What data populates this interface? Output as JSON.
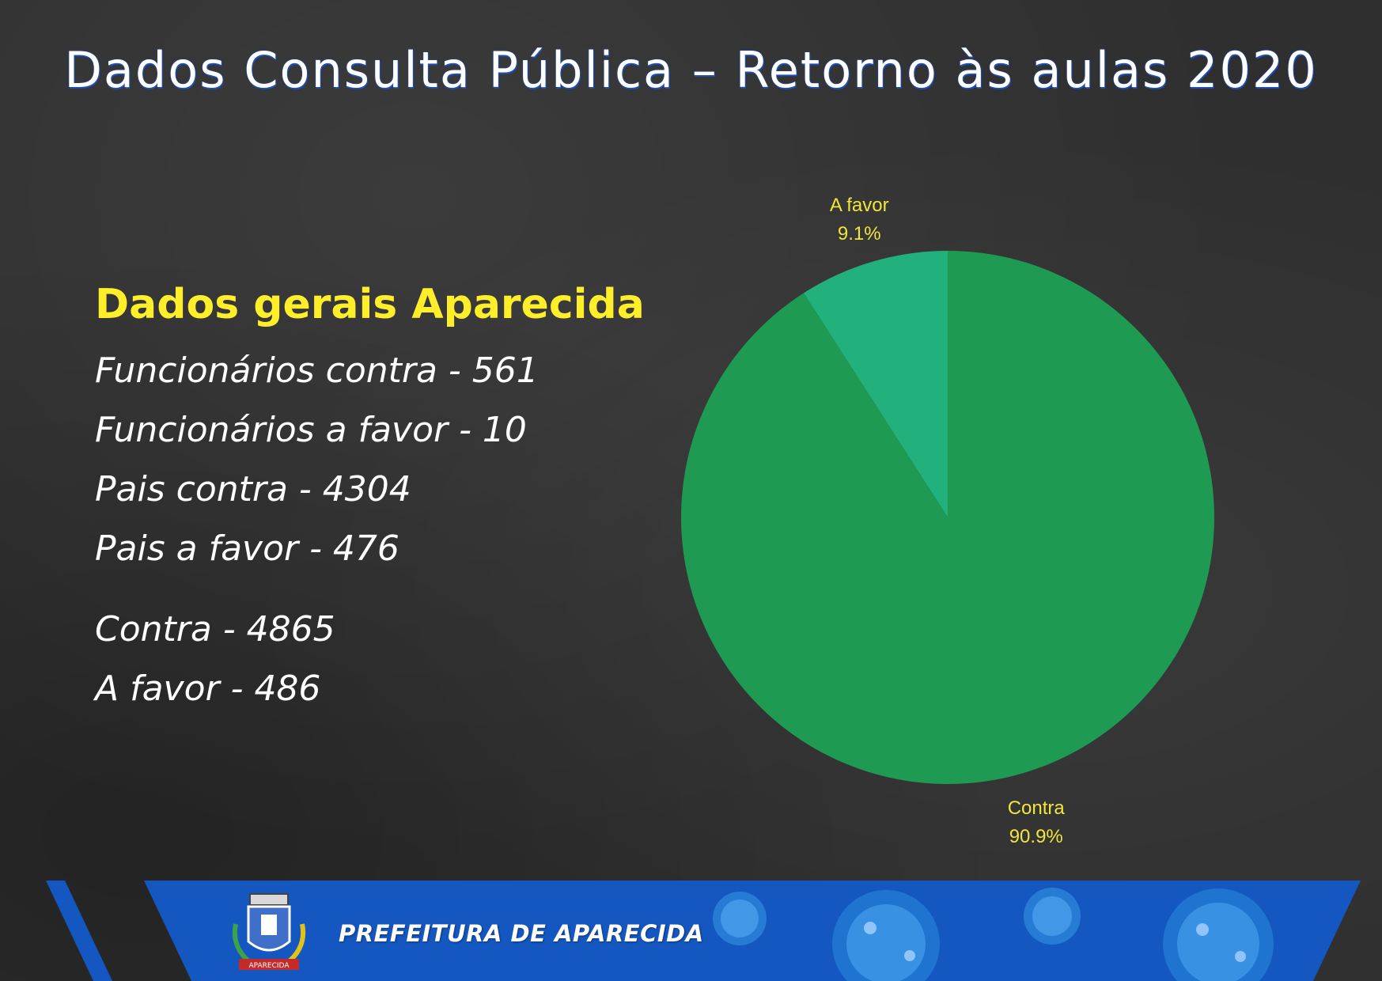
{
  "header": {
    "title": "Dados Consulta Pública – Retorno às aulas 2020"
  },
  "stats": {
    "heading": "Dados gerais Aparecida",
    "lines": [
      "Funcionários contra - 561",
      "Funcionários a favor - 10",
      "Pais contra - 4304",
      "Pais a favor - 476"
    ],
    "totals": [
      "Contra - 4865",
      "A favor - 486"
    ]
  },
  "chart_data": {
    "type": "pie",
    "slices": [
      {
        "name": "A favor",
        "value": 486,
        "percent_label": "9.1%",
        "color": "#22b07d"
      },
      {
        "name": "Contra",
        "value": 4865,
        "percent_label": "90.9%",
        "color": "#1f9a52"
      }
    ],
    "label_color": "#f2e53a"
  },
  "footer": {
    "organization": "PREFEITURA DE APARECIDA",
    "band_color": "#1557c0",
    "crest_text": "APARECIDA"
  }
}
